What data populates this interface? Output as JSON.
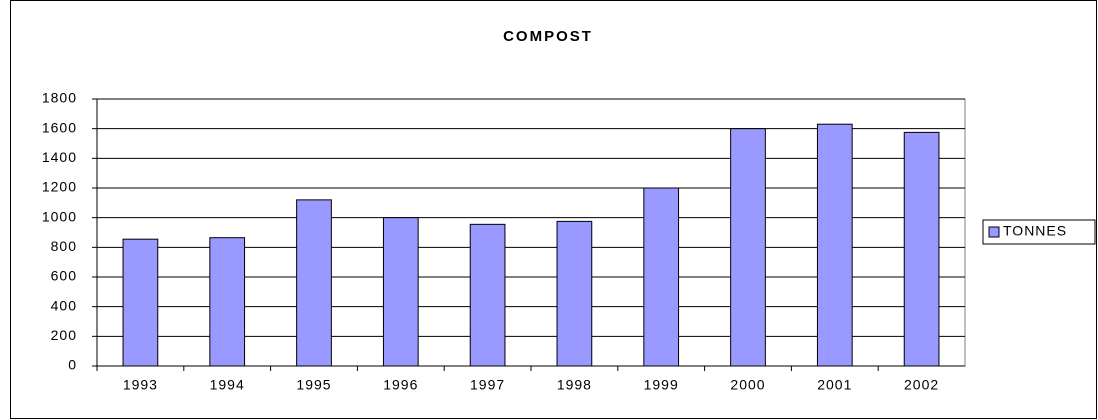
{
  "chart_data": {
    "type": "bar",
    "title": "COMPOST",
    "categories": [
      "1993",
      "1994",
      "1995",
      "1996",
      "1997",
      "1998",
      "1999",
      "2000",
      "2001",
      "2002"
    ],
    "series": [
      {
        "name": "TONNES",
        "color": "#9999ff",
        "values": [
          855,
          865,
          1120,
          1000,
          955,
          975,
          1200,
          1600,
          1630,
          1575
        ]
      }
    ],
    "ylim": [
      0,
      1800
    ],
    "yticks": [
      0,
      200,
      400,
      600,
      800,
      1000,
      1200,
      1400,
      1600,
      1800
    ],
    "grid": true,
    "legend": "right"
  }
}
